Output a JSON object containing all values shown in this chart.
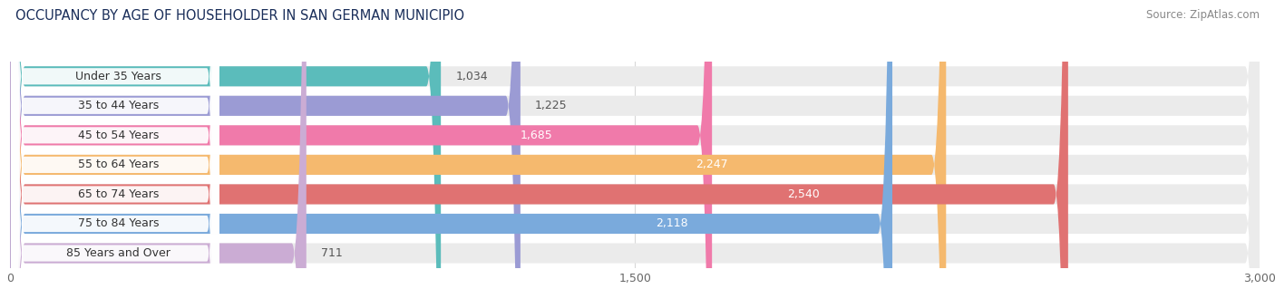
{
  "title": "OCCUPANCY BY AGE OF HOUSEHOLDER IN SAN GERMAN MUNICIPIO",
  "source": "Source: ZipAtlas.com",
  "categories": [
    "Under 35 Years",
    "35 to 44 Years",
    "45 to 54 Years",
    "55 to 64 Years",
    "65 to 74 Years",
    "75 to 84 Years",
    "85 Years and Over"
  ],
  "values": [
    1034,
    1225,
    1685,
    2247,
    2540,
    2118,
    711
  ],
  "bar_colors": [
    "#5bbcbb",
    "#9b9bd4",
    "#f07aaa",
    "#f5b96e",
    "#e07272",
    "#7aaadc",
    "#cbacd4"
  ],
  "bar_bg_color": "#ebebeb",
  "xlim": [
    0,
    3000
  ],
  "xticks": [
    0,
    1500,
    3000
  ],
  "bar_height": 0.68,
  "label_inside_color": "#ffffff",
  "label_outside_color": "#555555",
  "label_inside_threshold": 1500,
  "background_color": "#ffffff",
  "grid_color": "#d8d8d8",
  "title_fontsize": 10.5,
  "source_fontsize": 8.5,
  "tick_fontsize": 9,
  "category_fontsize": 9,
  "value_fontsize": 9,
  "pill_bg": "#ffffff",
  "pill_text_color": "#333333"
}
